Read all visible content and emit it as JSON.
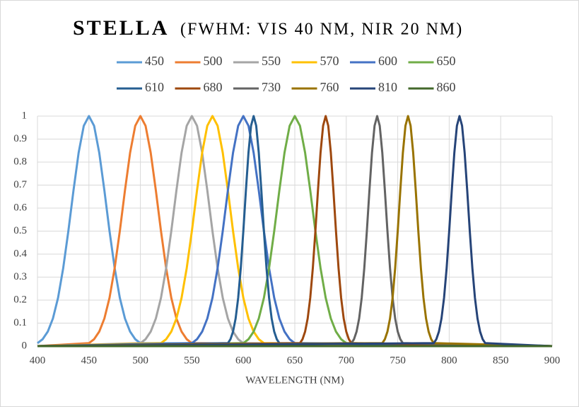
{
  "chart_data": {
    "type": "line",
    "title": "STELLA",
    "subtitle": "(FWHM: VIS 40 NM, NIR 20 NM)",
    "x_label": "WAVELENGTH (NM)",
    "xlim": [
      400,
      900
    ],
    "xticks": [
      400,
      450,
      500,
      550,
      600,
      650,
      700,
      750,
      800,
      850,
      900
    ],
    "ylim": [
      0,
      1
    ],
    "yticks": [
      0,
      0.1,
      0.2,
      0.3,
      0.4,
      0.5,
      0.6,
      0.7,
      0.8,
      0.9,
      1
    ],
    "grid": true,
    "legend": "top",
    "series": [
      {
        "name": "450",
        "color": "#5b9bd5",
        "x": [
          400,
          405,
          410,
          415,
          420,
          425,
          430,
          435,
          440,
          445,
          450,
          455,
          460,
          465,
          470,
          475,
          480,
          485,
          490,
          495,
          500,
          900
        ],
        "values": [
          0.013,
          0.03,
          0.063,
          0.12,
          0.21,
          0.339,
          0.5,
          0.677,
          0.841,
          0.958,
          1,
          0.958,
          0.841,
          0.677,
          0.5,
          0.339,
          0.21,
          0.12,
          0.063,
          0.03,
          0.013,
          0
        ]
      },
      {
        "name": "500",
        "color": "#ed7d31",
        "x": [
          400,
          450,
          455,
          460,
          465,
          470,
          475,
          480,
          485,
          490,
          495,
          500,
          505,
          510,
          515,
          520,
          525,
          530,
          535,
          540,
          545,
          550,
          900
        ],
        "values": [
          0,
          0.013,
          0.03,
          0.063,
          0.12,
          0.21,
          0.339,
          0.5,
          0.677,
          0.841,
          0.958,
          1,
          0.958,
          0.841,
          0.677,
          0.5,
          0.339,
          0.21,
          0.12,
          0.063,
          0.03,
          0.013,
          0
        ]
      },
      {
        "name": "550",
        "color": "#a5a5a5",
        "x": [
          400,
          500,
          505,
          510,
          515,
          520,
          525,
          530,
          535,
          540,
          545,
          550,
          555,
          560,
          565,
          570,
          575,
          580,
          585,
          590,
          595,
          600,
          900
        ],
        "values": [
          0,
          0.013,
          0.03,
          0.063,
          0.12,
          0.21,
          0.339,
          0.5,
          0.677,
          0.841,
          0.958,
          1,
          0.958,
          0.841,
          0.677,
          0.5,
          0.339,
          0.21,
          0.12,
          0.063,
          0.03,
          0.013,
          0
        ]
      },
      {
        "name": "570",
        "color": "#ffc000",
        "x": [
          400,
          520,
          525,
          530,
          535,
          540,
          545,
          550,
          555,
          560,
          565,
          570,
          575,
          580,
          585,
          590,
          595,
          600,
          605,
          610,
          615,
          620,
          900
        ],
        "values": [
          0,
          0.013,
          0.03,
          0.063,
          0.12,
          0.21,
          0.339,
          0.5,
          0.677,
          0.841,
          0.958,
          1,
          0.958,
          0.841,
          0.677,
          0.5,
          0.339,
          0.21,
          0.12,
          0.063,
          0.03,
          0.013,
          0
        ]
      },
      {
        "name": "600",
        "color": "#4472c4",
        "x": [
          400,
          550,
          555,
          560,
          565,
          570,
          575,
          580,
          585,
          590,
          595,
          600,
          605,
          610,
          615,
          620,
          625,
          630,
          635,
          640,
          645,
          650,
          900
        ],
        "values": [
          0,
          0.013,
          0.03,
          0.063,
          0.12,
          0.21,
          0.339,
          0.5,
          0.677,
          0.841,
          0.958,
          1,
          0.958,
          0.841,
          0.677,
          0.5,
          0.339,
          0.21,
          0.12,
          0.063,
          0.03,
          0.013,
          0
        ]
      },
      {
        "name": "650",
        "color": "#70ad47",
        "x": [
          400,
          600,
          605,
          610,
          615,
          620,
          625,
          630,
          635,
          640,
          645,
          650,
          655,
          660,
          665,
          670,
          675,
          680,
          685,
          690,
          695,
          700,
          900
        ],
        "values": [
          0,
          0.013,
          0.03,
          0.063,
          0.12,
          0.21,
          0.339,
          0.5,
          0.677,
          0.841,
          0.958,
          1,
          0.958,
          0.841,
          0.677,
          0.5,
          0.339,
          0.21,
          0.12,
          0.063,
          0.03,
          0.013,
          0
        ]
      },
      {
        "name": "610",
        "color": "#255e91",
        "x": [
          400,
          585,
          587.5,
          590,
          592.5,
          595,
          597.5,
          600,
          602.5,
          605,
          607.5,
          610,
          612.5,
          615,
          617.5,
          620,
          622.5,
          625,
          627.5,
          630,
          632.5,
          635,
          900
        ],
        "values": [
          0,
          0.013,
          0.03,
          0.063,
          0.12,
          0.21,
          0.339,
          0.5,
          0.677,
          0.841,
          0.958,
          1,
          0.958,
          0.841,
          0.677,
          0.5,
          0.339,
          0.21,
          0.12,
          0.063,
          0.03,
          0.013,
          0
        ]
      },
      {
        "name": "680",
        "color": "#9e480e",
        "x": [
          400,
          655,
          657.5,
          660,
          662.5,
          665,
          667.5,
          670,
          672.5,
          675,
          677.5,
          680,
          682.5,
          685,
          687.5,
          690,
          692.5,
          695,
          697.5,
          700,
          702.5,
          705,
          900
        ],
        "values": [
          0,
          0.013,
          0.03,
          0.063,
          0.12,
          0.21,
          0.339,
          0.5,
          0.677,
          0.841,
          0.958,
          1,
          0.958,
          0.841,
          0.677,
          0.5,
          0.339,
          0.21,
          0.12,
          0.063,
          0.03,
          0.013,
          0
        ]
      },
      {
        "name": "730",
        "color": "#636363",
        "x": [
          400,
          705,
          707.5,
          710,
          712.5,
          715,
          717.5,
          720,
          722.5,
          725,
          727.5,
          730,
          732.5,
          735,
          737.5,
          740,
          742.5,
          745,
          747.5,
          750,
          752.5,
          755,
          900
        ],
        "values": [
          0,
          0.013,
          0.03,
          0.063,
          0.12,
          0.21,
          0.339,
          0.5,
          0.677,
          0.841,
          0.958,
          1,
          0.958,
          0.841,
          0.677,
          0.5,
          0.339,
          0.21,
          0.12,
          0.063,
          0.03,
          0.013,
          0
        ]
      },
      {
        "name": "760",
        "color": "#997300",
        "x": [
          400,
          735,
          737.5,
          740,
          742.5,
          745,
          747.5,
          750,
          752.5,
          755,
          757.5,
          760,
          762.5,
          765,
          767.5,
          770,
          772.5,
          775,
          777.5,
          780,
          782.5,
          785,
          900
        ],
        "values": [
          0,
          0.013,
          0.03,
          0.063,
          0.12,
          0.21,
          0.339,
          0.5,
          0.677,
          0.841,
          0.958,
          1,
          0.958,
          0.841,
          0.677,
          0.5,
          0.339,
          0.21,
          0.12,
          0.063,
          0.03,
          0.013,
          0
        ]
      },
      {
        "name": "810",
        "color": "#264478",
        "x": [
          400,
          785,
          787.5,
          790,
          792.5,
          795,
          797.5,
          800,
          802.5,
          805,
          807.5,
          810,
          812.5,
          815,
          817.5,
          820,
          822.5,
          825,
          827.5,
          830,
          832.5,
          835,
          900
        ],
        "values": [
          0,
          0.013,
          0.03,
          0.063,
          0.12,
          0.21,
          0.339,
          0.5,
          0.677,
          0.841,
          0.958,
          1,
          0.958,
          0.841,
          0.677,
          0.5,
          0.339,
          0.21,
          0.12,
          0.063,
          0.03,
          0.013,
          0
        ]
      },
      {
        "name": "860",
        "color": "#43682b",
        "x": [
          400,
          900
        ],
        "values": [
          0,
          0
        ]
      }
    ]
  }
}
